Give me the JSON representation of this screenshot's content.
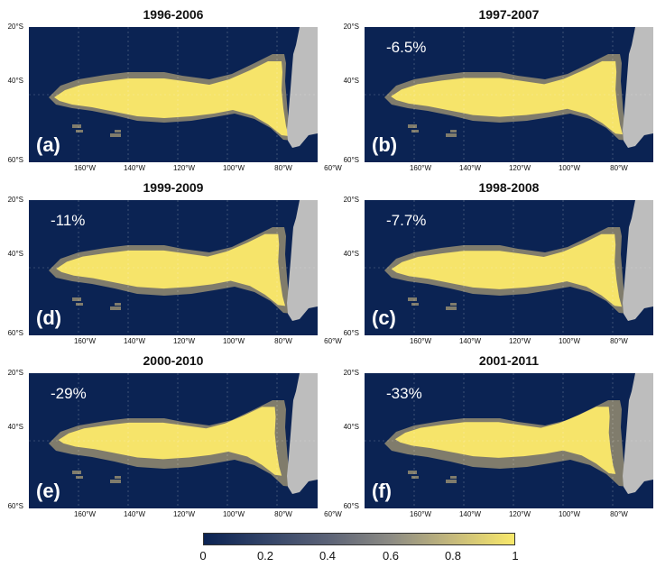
{
  "panels": [
    {
      "title": "1996-2006",
      "letter": "(a)",
      "change": ""
    },
    {
      "title": "1997-2007",
      "letter": "(b)",
      "change": "-6.5%"
    },
    {
      "title": "1999-2009",
      "letter": "(d)",
      "change": "-11%"
    },
    {
      "title": "1998-2008",
      "letter": "(c)",
      "change": "-7.7%"
    },
    {
      "title": "2000-2010",
      "letter": "(e)",
      "change": "-29%"
    },
    {
      "title": "2001-2011",
      "letter": "(f)",
      "change": "-33%"
    }
  ],
  "lat_labels": [
    "20°S",
    "40°S",
    "60°S"
  ],
  "lon_labels": [
    "160°W",
    "140°W",
    "120°W",
    "100°W",
    "80°W",
    "60°W"
  ],
  "colorbar": {
    "ticks": [
      "0",
      "0.2",
      "0.4",
      "0.6",
      "0.8",
      "1"
    ],
    "colors": [
      "#0b2353",
      "#5c6377",
      "#f8e86a"
    ]
  },
  "colors": {
    "ocean": "#0b2353",
    "land": "#bdbdbd",
    "core": "#f6e46a",
    "fringe": "#807c6c"
  }
}
